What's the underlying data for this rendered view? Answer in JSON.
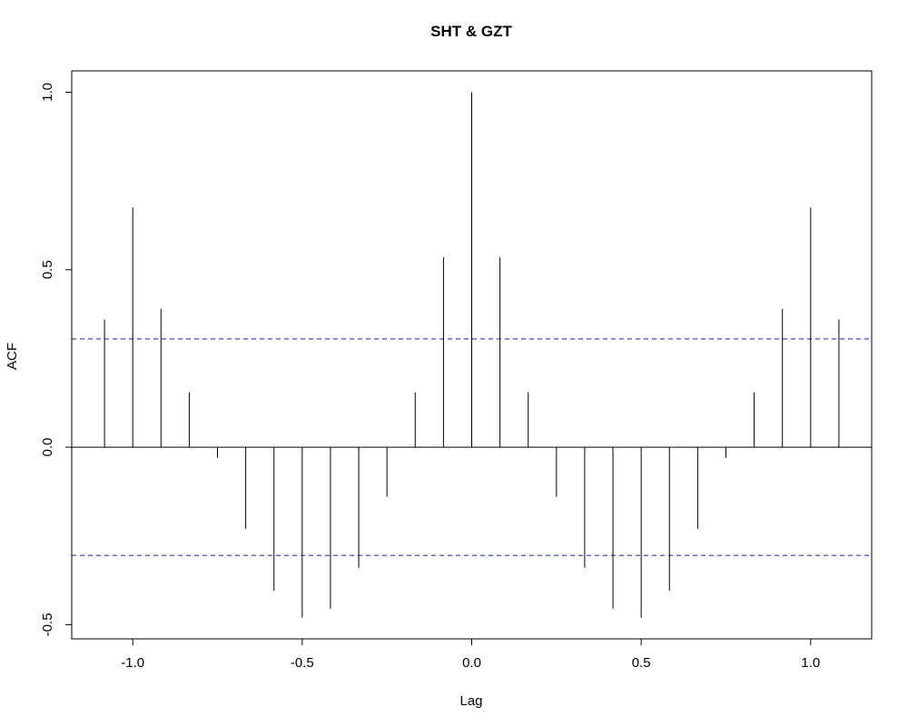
{
  "chart_data": {
    "type": "bar",
    "title": "SHT & GZT",
    "xlabel": "Lag",
    "ylabel": "ACF",
    "xlim": [
      -1.18,
      1.18
    ],
    "ylim": [
      -0.54,
      1.06
    ],
    "x_ticks": [
      -1.0,
      -0.5,
      0.0,
      0.5,
      1.0
    ],
    "x_tick_labels": [
      "-1.0",
      "-0.5",
      "0.0",
      "0.5",
      "1.0"
    ],
    "y_ticks": [
      -0.5,
      0.0,
      0.5,
      1.0
    ],
    "y_tick_labels": [
      "-0.5",
      "0.0",
      "0.5",
      "1.0"
    ],
    "confidence_bound": 0.305,
    "confidence_color": "#5555dd",
    "grid": false,
    "x": [
      -1.0833,
      -1.0,
      -0.9167,
      -0.8333,
      -0.75,
      -0.6667,
      -0.5833,
      -0.5,
      -0.4167,
      -0.3333,
      -0.25,
      -0.1667,
      -0.0833,
      0.0,
      0.0833,
      0.1667,
      0.25,
      0.3333,
      0.4167,
      0.5,
      0.5833,
      0.6667,
      0.75,
      0.8333,
      0.9167,
      1.0,
      1.0833
    ],
    "values": [
      0.36,
      0.675,
      0.39,
      0.155,
      -0.03,
      -0.23,
      -0.405,
      -0.48,
      -0.455,
      -0.34,
      -0.14,
      0.155,
      0.535,
      1.0,
      0.535,
      0.155,
      -0.14,
      -0.34,
      -0.455,
      -0.48,
      -0.405,
      -0.23,
      -0.03,
      0.155,
      0.39,
      0.675,
      0.36
    ]
  }
}
